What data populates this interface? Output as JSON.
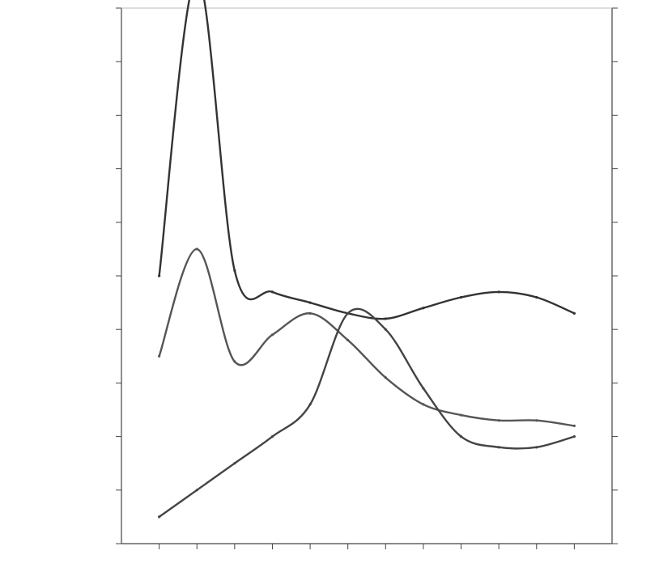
{
  "chart_data": {
    "type": "line",
    "title": "",
    "xlabel": "",
    "ylabel": "",
    "x": [
      1,
      2,
      3,
      4,
      5,
      6,
      7,
      8,
      9,
      10,
      11,
      12
    ],
    "xlim": [
      0,
      13
    ],
    "ylim": [
      0,
      10
    ],
    "ylim_right": [
      0,
      10
    ],
    "grid": false,
    "legend": "none",
    "series": [
      {
        "axis": "left",
        "color": "#333333",
        "values": [
          5.0,
          10.6,
          5.1,
          4.7,
          4.5,
          4.3,
          4.2,
          4.4,
          4.6,
          4.7,
          4.6,
          4.3
        ]
      },
      {
        "axis": "left",
        "color": "#555555",
        "values": [
          3.5,
          5.5,
          3.4,
          3.9,
          4.3,
          3.8,
          3.1,
          2.6,
          2.4,
          2.3,
          2.3,
          2.2
        ]
      },
      {
        "axis": "right",
        "color": "#444444",
        "values": [
          0.5,
          1.0,
          1.5,
          2.0,
          2.6,
          4.3,
          4.0,
          2.9,
          2.0,
          1.8,
          1.8,
          2.0
        ]
      }
    ]
  }
}
